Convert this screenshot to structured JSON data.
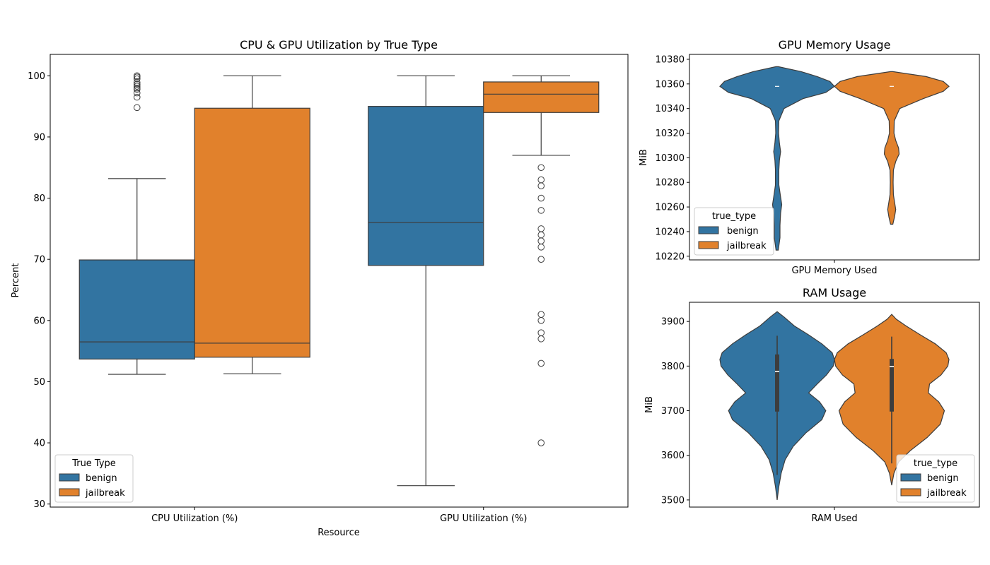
{
  "colors": {
    "benign": "#3274a1",
    "jailbreak": "#e1812c",
    "edge": "#3d3d3d"
  },
  "chart_data": [
    {
      "type": "box",
      "title": "CPU & GPU Utilization by True Type",
      "xlabel": "Resource",
      "ylabel": "Percent",
      "categories": [
        "CPU Utilization (%)",
        "GPU Utilization (%)"
      ],
      "ylim": [
        29.5,
        103.5
      ],
      "yticks": [
        30,
        40,
        50,
        60,
        70,
        80,
        90,
        100
      ],
      "legend": {
        "title": "True Type",
        "placement": "lower-left",
        "entries": [
          "benign",
          "jailbreak"
        ]
      },
      "series": [
        {
          "name": "benign",
          "color": "#3274a1",
          "boxes": [
            {
              "category": "CPU Utilization (%)",
              "whislo": 51.2,
              "q1": 53.7,
              "med": 56.5,
              "q3": 69.9,
              "whishi": 83.2,
              "fliers": [
                94.8,
                96.5,
                97.2,
                97.8,
                98.0,
                98.3,
                98.6,
                98.9,
                99.5,
                99.8,
                100.0
              ]
            },
            {
              "category": "GPU Utilization (%)",
              "whislo": 33.0,
              "q1": 69.0,
              "med": 76.0,
              "q3": 95.0,
              "whishi": 100.0,
              "fliers": []
            }
          ]
        },
        {
          "name": "jailbreak",
          "color": "#e1812c",
          "boxes": [
            {
              "category": "CPU Utilization (%)",
              "whislo": 51.3,
              "q1": 54.0,
              "med": 56.3,
              "q3": 94.7,
              "whishi": 100.0,
              "fliers": []
            },
            {
              "category": "GPU Utilization (%)",
              "whislo": 87.0,
              "q1": 94.0,
              "med": 97.0,
              "q3": 99.0,
              "whishi": 100.0,
              "fliers": [
                85,
                83,
                82,
                80,
                78,
                75,
                74,
                73,
                72,
                70,
                61,
                60,
                58,
                57,
                53,
                40
              ]
            }
          ]
        }
      ]
    },
    {
      "type": "violin",
      "title": "GPU Memory Usage",
      "xlabel": "",
      "ylabel": "MiB",
      "categories": [
        "GPU Memory Used"
      ],
      "ylim": [
        10217,
        10384
      ],
      "yticks": [
        10220,
        10240,
        10260,
        10280,
        10300,
        10320,
        10340,
        10360,
        10380
      ],
      "legend": {
        "title": "true_type",
        "placement": "lower-left",
        "entries": [
          "benign",
          "jailbreak"
        ]
      },
      "series": [
        {
          "name": "benign",
          "color": "#3274a1",
          "median": 10358,
          "density": [
            [
              10225,
              0.02
            ],
            [
              10235,
              0.05
            ],
            [
              10245,
              0.05
            ],
            [
              10255,
              0.06
            ],
            [
              10262,
              0.08
            ],
            [
              10268,
              0.06
            ],
            [
              10278,
              0.03
            ],
            [
              10290,
              0.03
            ],
            [
              10298,
              0.04
            ],
            [
              10305,
              0.06
            ],
            [
              10312,
              0.04
            ],
            [
              10320,
              0.025
            ],
            [
              10330,
              0.03
            ],
            [
              10340,
              0.12
            ],
            [
              10348,
              0.45
            ],
            [
              10353,
              0.85
            ],
            [
              10358,
              1.0
            ],
            [
              10362,
              0.92
            ],
            [
              10366,
              0.7
            ],
            [
              10370,
              0.42
            ],
            [
              10374,
              0.02
            ]
          ]
        },
        {
          "name": "jailbreak",
          "color": "#e1812c",
          "median": 10358,
          "density": [
            [
              10246,
              0.02
            ],
            [
              10252,
              0.05
            ],
            [
              10258,
              0.07
            ],
            [
              10264,
              0.05
            ],
            [
              10270,
              0.03
            ],
            [
              10280,
              0.025
            ],
            [
              10290,
              0.03
            ],
            [
              10297,
              0.07
            ],
            [
              10303,
              0.13
            ],
            [
              10308,
              0.12
            ],
            [
              10314,
              0.07
            ],
            [
              10320,
              0.04
            ],
            [
              10330,
              0.045
            ],
            [
              10340,
              0.14
            ],
            [
              10348,
              0.55
            ],
            [
              10354,
              0.9
            ],
            [
              10358,
              1.0
            ],
            [
              10362,
              0.9
            ],
            [
              10366,
              0.6
            ],
            [
              10370,
              0.02
            ]
          ]
        }
      ]
    },
    {
      "type": "violin",
      "title": "RAM Usage",
      "xlabel": "",
      "ylabel": "MiB",
      "categories": [
        "RAM Used"
      ],
      "ylim": [
        3484,
        3943
      ],
      "yticks": [
        3500,
        3600,
        3700,
        3800,
        3900
      ],
      "legend": {
        "title": "true_type",
        "placement": "lower-right",
        "entries": [
          "benign",
          "jailbreak"
        ]
      },
      "series": [
        {
          "name": "benign",
          "color": "#3274a1",
          "median": 3788,
          "box": {
            "q1": 3698,
            "q3": 3826,
            "whislo": 3556,
            "whishi": 3868
          },
          "density": [
            [
              3500,
              0.0
            ],
            [
              3530,
              0.03
            ],
            [
              3560,
              0.07
            ],
            [
              3590,
              0.14
            ],
            [
              3620,
              0.28
            ],
            [
              3650,
              0.5
            ],
            [
              3680,
              0.78
            ],
            [
              3700,
              0.85
            ],
            [
              3720,
              0.74
            ],
            [
              3740,
              0.55
            ],
            [
              3760,
              0.7
            ],
            [
              3780,
              0.86
            ],
            [
              3800,
              0.98
            ],
            [
              3815,
              1.0
            ],
            [
              3830,
              0.96
            ],
            [
              3850,
              0.78
            ],
            [
              3870,
              0.55
            ],
            [
              3890,
              0.3
            ],
            [
              3910,
              0.12
            ],
            [
              3922,
              0.0
            ]
          ]
        },
        {
          "name": "jailbreak",
          "color": "#e1812c",
          "median": 3799,
          "box": {
            "q1": 3698,
            "q3": 3816,
            "whislo": 3582,
            "whishi": 3866
          },
          "density": [
            [
              3533,
              0.0
            ],
            [
              3560,
              0.04
            ],
            [
              3585,
              0.12
            ],
            [
              3610,
              0.32
            ],
            [
              3640,
              0.62
            ],
            [
              3670,
              0.85
            ],
            [
              3700,
              0.92
            ],
            [
              3720,
              0.82
            ],
            [
              3740,
              0.64
            ],
            [
              3760,
              0.66
            ],
            [
              3780,
              0.86
            ],
            [
              3800,
              0.98
            ],
            [
              3815,
              1.0
            ],
            [
              3830,
              0.95
            ],
            [
              3850,
              0.76
            ],
            [
              3870,
              0.5
            ],
            [
              3890,
              0.25
            ],
            [
              3905,
              0.08
            ],
            [
              3916,
              0.0
            ]
          ]
        }
      ]
    }
  ]
}
